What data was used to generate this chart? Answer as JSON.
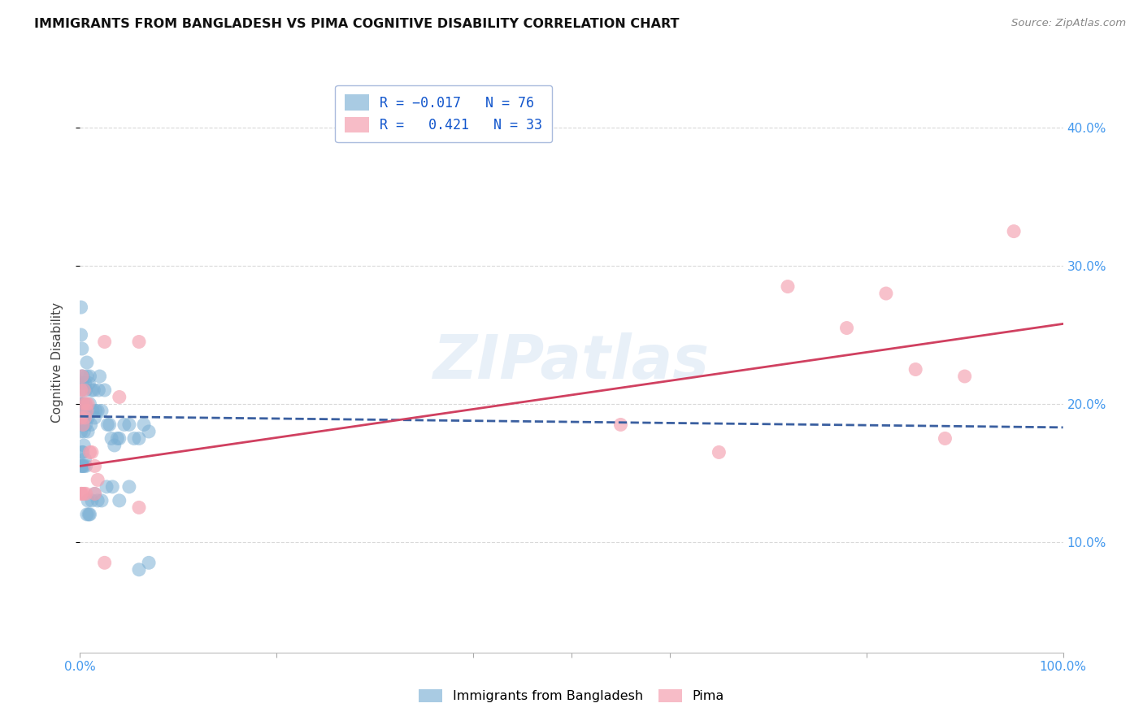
{
  "title": "IMMIGRANTS FROM BANGLADESH VS PIMA COGNITIVE DISABILITY CORRELATION CHART",
  "source": "Source: ZipAtlas.com",
  "ylabel": "Cognitive Disability",
  "background_color": "#ffffff",
  "grid_color": "#d0d0d0",
  "watermark": "ZIPatlas",
  "blue_color": "#7bafd4",
  "pink_color": "#f4a0b0",
  "blue_line_color": "#3a5fa0",
  "pink_line_color": "#d04060",
  "right_axis_color": "#4499ee",
  "ytick_labels_right": [
    "10.0%",
    "20.0%",
    "30.0%",
    "40.0%"
  ],
  "ytick_values_right": [
    0.1,
    0.2,
    0.3,
    0.4
  ],
  "xlim": [
    0.0,
    1.0
  ],
  "ylim": [
    0.02,
    0.44
  ],
  "blue_scatter_x": [
    0.001,
    0.001,
    0.001,
    0.0015,
    0.0015,
    0.002,
    0.002,
    0.002,
    0.0025,
    0.0025,
    0.003,
    0.003,
    0.0035,
    0.004,
    0.004,
    0.005,
    0.005,
    0.005,
    0.006,
    0.006,
    0.007,
    0.007,
    0.008,
    0.008,
    0.009,
    0.01,
    0.01,
    0.011,
    0.012,
    0.013,
    0.014,
    0.015,
    0.016,
    0.018,
    0.019,
    0.02,
    0.022,
    0.025,
    0.028,
    0.03,
    0.032,
    0.035,
    0.038,
    0.04,
    0.045,
    0.05,
    0.055,
    0.06,
    0.065,
    0.07,
    0.001,
    0.001,
    0.002,
    0.002,
    0.003,
    0.004,
    0.005,
    0.006,
    0.007,
    0.008,
    0.009,
    0.01,
    0.012,
    0.015,
    0.018,
    0.022,
    0.027,
    0.033,
    0.04,
    0.05,
    0.06,
    0.07,
    0.001,
    0.002,
    0.003,
    0.004
  ],
  "blue_scatter_y": [
    0.19,
    0.21,
    0.18,
    0.2,
    0.22,
    0.2,
    0.195,
    0.185,
    0.19,
    0.215,
    0.2,
    0.22,
    0.185,
    0.18,
    0.19,
    0.215,
    0.195,
    0.2,
    0.21,
    0.185,
    0.22,
    0.23,
    0.19,
    0.18,
    0.215,
    0.2,
    0.22,
    0.185,
    0.21,
    0.195,
    0.21,
    0.19,
    0.195,
    0.195,
    0.21,
    0.22,
    0.195,
    0.21,
    0.185,
    0.185,
    0.175,
    0.17,
    0.175,
    0.175,
    0.185,
    0.185,
    0.175,
    0.175,
    0.185,
    0.18,
    0.25,
    0.27,
    0.24,
    0.165,
    0.165,
    0.17,
    0.16,
    0.155,
    0.12,
    0.13,
    0.12,
    0.12,
    0.13,
    0.135,
    0.13,
    0.13,
    0.14,
    0.14,
    0.13,
    0.14,
    0.08,
    0.085,
    0.155,
    0.155,
    0.155,
    0.155
  ],
  "pink_scatter_x": [
    0.001,
    0.001,
    0.002,
    0.003,
    0.003,
    0.004,
    0.005,
    0.006,
    0.007,
    0.008,
    0.01,
    0.012,
    0.015,
    0.018,
    0.025,
    0.04,
    0.06,
    0.55,
    0.65,
    0.72,
    0.78,
    0.82,
    0.85,
    0.88,
    0.9,
    0.001,
    0.002,
    0.004,
    0.006,
    0.015,
    0.025,
    0.06,
    0.95
  ],
  "pink_scatter_y": [
    0.21,
    0.19,
    0.22,
    0.2,
    0.185,
    0.21,
    0.19,
    0.2,
    0.195,
    0.2,
    0.165,
    0.165,
    0.135,
    0.145,
    0.245,
    0.205,
    0.245,
    0.185,
    0.165,
    0.285,
    0.255,
    0.28,
    0.225,
    0.175,
    0.22,
    0.135,
    0.135,
    0.135,
    0.135,
    0.155,
    0.085,
    0.125,
    0.325
  ],
  "blue_line_x": [
    0.0,
    1.0
  ],
  "blue_line_y": [
    0.191,
    0.183
  ],
  "pink_line_x": [
    0.0,
    1.0
  ],
  "pink_line_y": [
    0.155,
    0.258
  ]
}
